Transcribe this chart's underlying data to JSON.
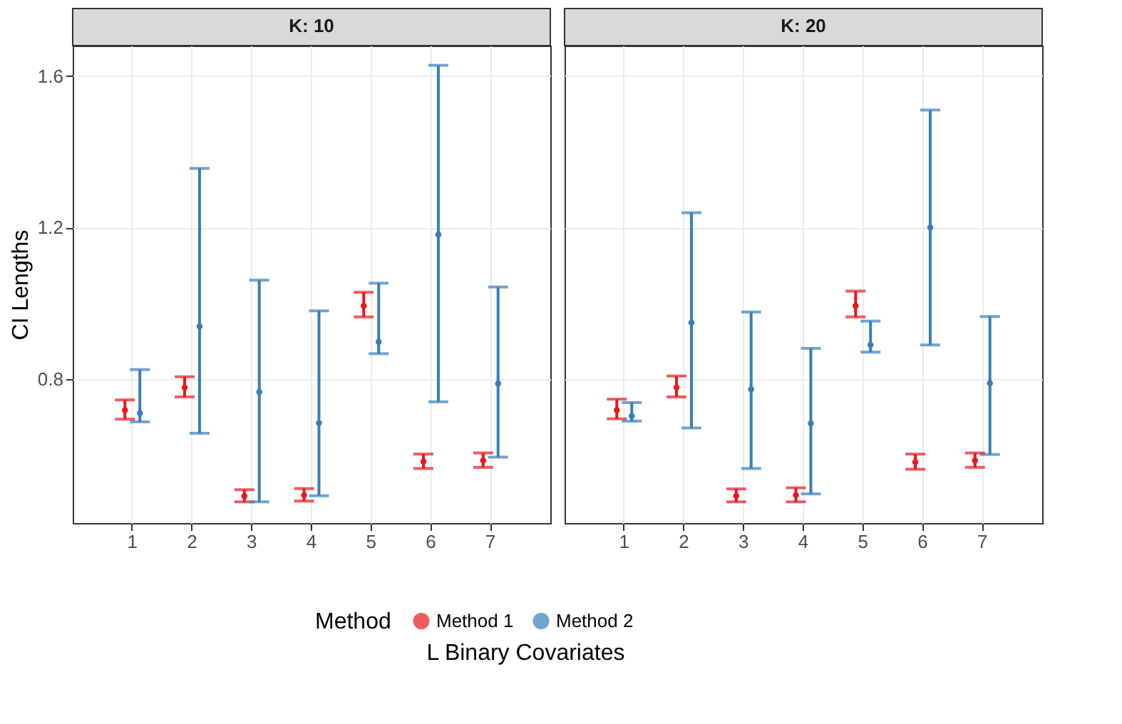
{
  "chart_data": [
    {
      "type": "scatter",
      "title": "K: 10",
      "xlabel": "L Binary Covariates",
      "ylabel": "CI Lengths",
      "legend_title": "Method",
      "legend": "bottom",
      "grid": true,
      "marker": "circle",
      "categories": [
        "1",
        "2",
        "3",
        "4",
        "5",
        "6",
        "7"
      ],
      "ylim": [
        0.42,
        1.68
      ],
      "yticks": [
        0.8,
        1.2,
        1.6
      ],
      "series": [
        {
          "name": "Method 1",
          "color": "#e41a1c",
          "values": [
            0.718,
            0.778,
            0.491,
            0.494,
            0.993,
            0.582,
            0.585
          ],
          "errors": [
            [
              0.694,
              0.745
            ],
            [
              0.753,
              0.806
            ],
            [
              0.476,
              0.508
            ],
            [
              0.478,
              0.511
            ],
            [
              0.964,
              1.029
            ],
            [
              0.564,
              0.602
            ],
            [
              0.567,
              0.605
            ]
          ]
        },
        {
          "name": "Method 2",
          "color": "#377eb8",
          "values": [
            0.71,
            0.939,
            0.766,
            0.684,
            0.898,
            1.181,
            0.788
          ],
          "errors": [
            [
              0.687,
              0.825
            ],
            [
              0.657,
              1.356
            ],
            [
              0.476,
              1.061
            ],
            [
              0.492,
              0.98
            ],
            [
              0.867,
              1.053
            ],
            [
              0.74,
              1.628
            ],
            [
              0.594,
              1.043
            ]
          ]
        }
      ]
    },
    {
      "type": "scatter",
      "title": "K: 20",
      "legend": "bottom",
      "grid": true,
      "marker": "circle",
      "tick_labels": "x",
      "categories": [
        "1",
        "2",
        "3",
        "4",
        "5",
        "6",
        "7"
      ],
      "ylim": [
        0.42,
        1.68
      ],
      "yticks": [
        0.8,
        1.2,
        1.6
      ],
      "series": [
        {
          "name": "Method 1",
          "color": "#e41a1c",
          "values": [
            0.718,
            0.778,
            0.492,
            0.494,
            0.993,
            0.581,
            0.585
          ],
          "errors": [
            [
              0.695,
              0.747
            ],
            [
              0.753,
              0.808
            ],
            [
              0.476,
              0.51
            ],
            [
              0.476,
              0.513
            ],
            [
              0.964,
              1.032
            ],
            [
              0.562,
              0.602
            ],
            [
              0.567,
              0.605
            ]
          ]
        },
        {
          "name": "Method 2",
          "color": "#377eb8",
          "values": [
            0.702,
            0.949,
            0.773,
            0.683,
            0.89,
            1.2,
            0.789
          ],
          "errors": [
            [
              0.689,
              0.738
            ],
            [
              0.671,
              1.239
            ],
            [
              0.564,
              0.977
            ],
            [
              0.497,
              0.881
            ],
            [
              0.871,
              0.953
            ],
            [
              0.89,
              1.51
            ],
            [
              0.601,
              0.965
            ]
          ]
        }
      ]
    }
  ]
}
